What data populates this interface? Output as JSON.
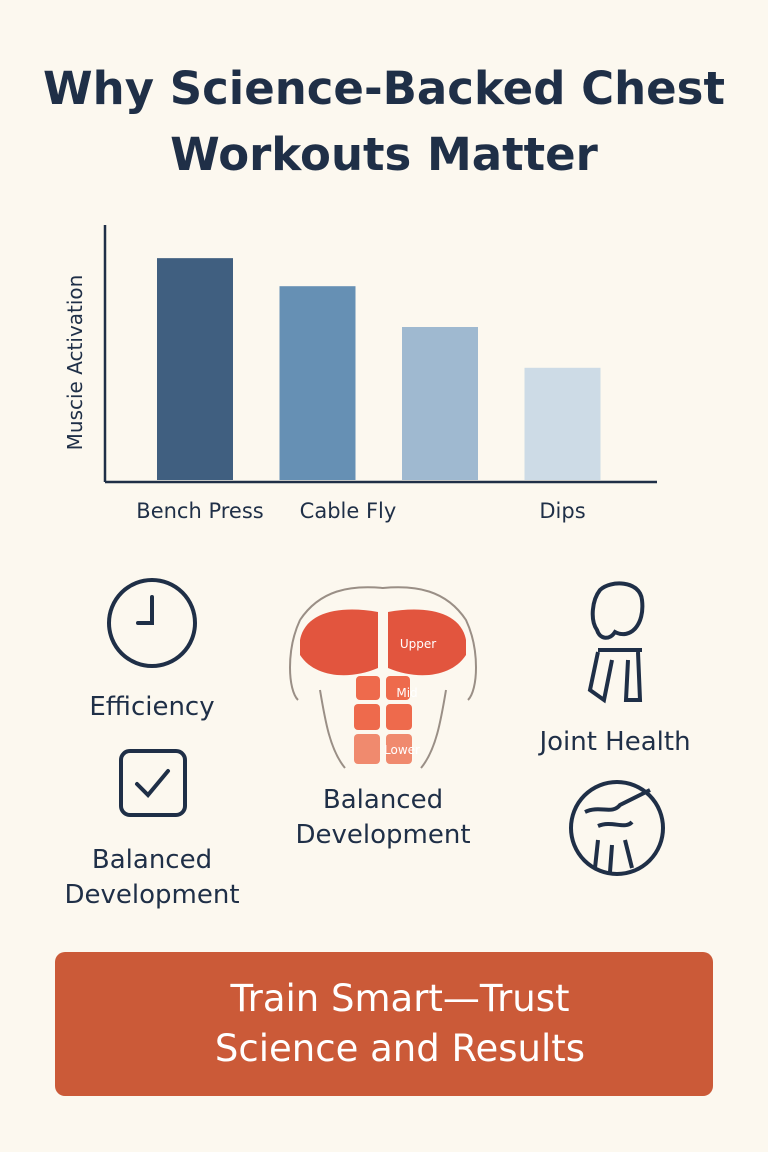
{
  "chart_data": {
    "type": "bar",
    "title": "Why Science-Backed Chest Workouts Matter",
    "y_label": "Muscie Activation",
    "categories": [
      "Bench Press",
      "Cable Fly",
      null,
      "Dips"
    ],
    "values": [
      87,
      76,
      60,
      44
    ],
    "colors": [
      "#405f80",
      "#6690b4",
      "#9fb9d0",
      "#cddbe6"
    ],
    "ylim": [
      0,
      100
    ]
  },
  "features": {
    "left": [
      {
        "label": "Efficiency"
      },
      {
        "label": "Balanced Development"
      }
    ],
    "center": {
      "label": "Balanced Development",
      "regions": [
        "Upper",
        "Mid",
        "Lower"
      ]
    },
    "right": {
      "label": "Joint Health"
    }
  },
  "banner": {
    "text": "Train Smart—Trust Science and Results"
  }
}
